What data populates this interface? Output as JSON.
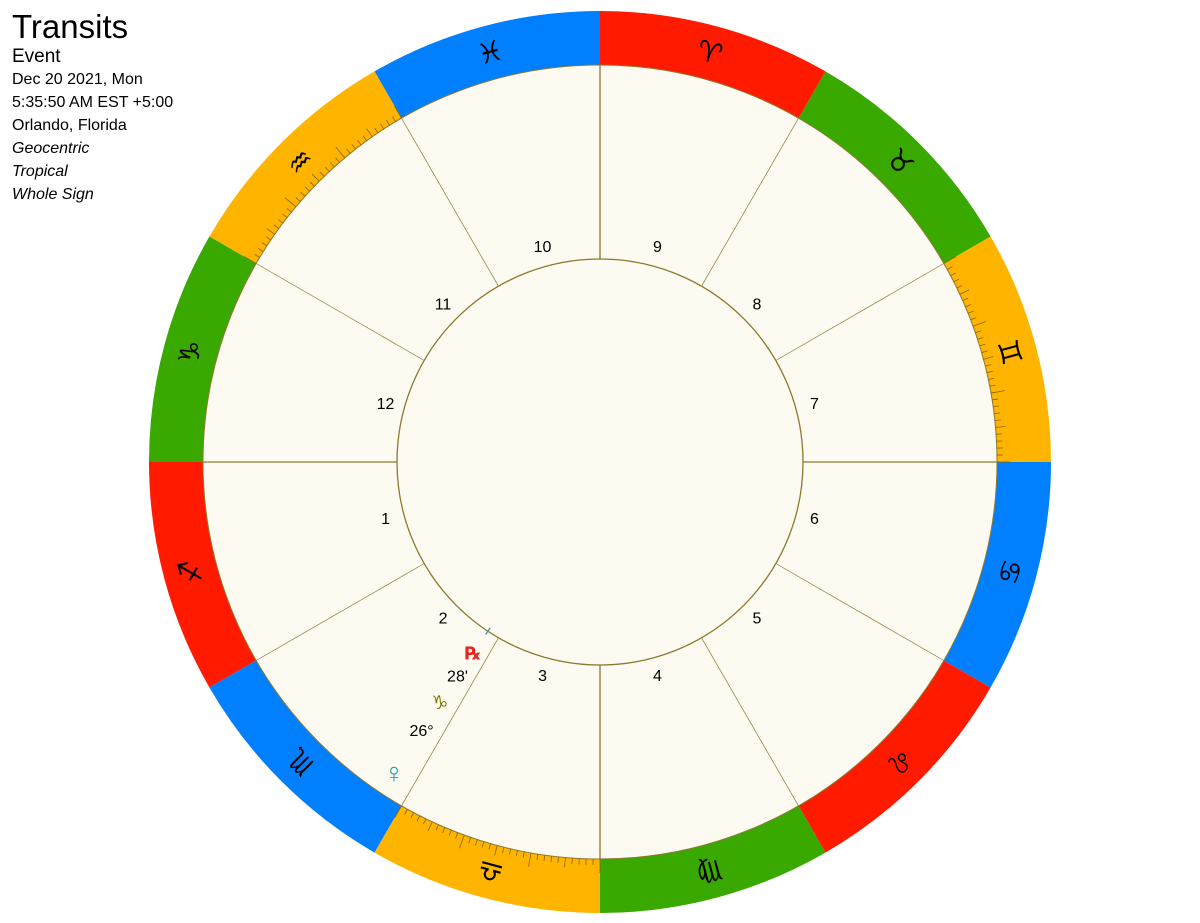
{
  "header": {
    "title": "Transits",
    "subtitle": "Event",
    "date": "Dec 20 2021, Mon",
    "time": "5:35:50 AM EST +5:00",
    "location": "Orlando, Florida",
    "perspective": "Geocentric",
    "zodiac": "Tropical",
    "house_system": "Whole Sign"
  },
  "colors": {
    "fire": "#ff1a00",
    "earth": "#39a900",
    "air": "#ffb400",
    "water": "#007fff",
    "inner_bg": "#fdfaf2",
    "line": "#8b7a2e",
    "venus": "#1a9ea8",
    "retro": "#e8231b",
    "sign_label": "#7a7a00"
  },
  "signs": [
    {
      "name": "Sagittarius",
      "glyph": "♐",
      "element": "fire"
    },
    {
      "name": "Scorpio",
      "glyph": "♏",
      "element": "water"
    },
    {
      "name": "Libra",
      "glyph": "♎",
      "element": "air"
    },
    {
      "name": "Virgo",
      "glyph": "♍",
      "element": "earth"
    },
    {
      "name": "Leo",
      "glyph": "♌",
      "element": "fire"
    },
    {
      "name": "Cancer",
      "glyph": "♋",
      "element": "water"
    },
    {
      "name": "Gemini",
      "glyph": "♊",
      "element": "air"
    },
    {
      "name": "Taurus",
      "glyph": "♉",
      "element": "earth"
    },
    {
      "name": "Aries",
      "glyph": "♈",
      "element": "fire"
    },
    {
      "name": "Pisces",
      "glyph": "♓",
      "element": "water"
    },
    {
      "name": "Aquarius",
      "glyph": "♒",
      "element": "air"
    },
    {
      "name": "Capricorn",
      "glyph": "♑",
      "element": "earth"
    }
  ],
  "houses": [
    "1",
    "2",
    "3",
    "4",
    "5",
    "6",
    "7",
    "8",
    "9",
    "10",
    "11",
    "12"
  ],
  "planet": {
    "name": "Venus",
    "glyph": "♀",
    "retrograde": "℞",
    "degree": "26°",
    "sign_glyph": "♑",
    "minute": "28'",
    "longitude": 296.47
  }
}
